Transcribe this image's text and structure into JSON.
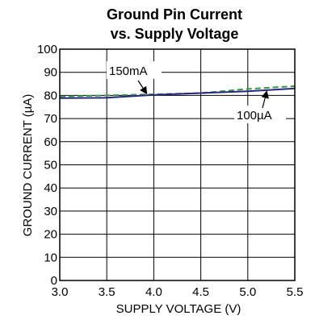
{
  "chart_data": {
    "type": "line",
    "title": "Ground Pin Current",
    "subtitle": "vs. Supply Voltage",
    "xlabel": "SUPPLY VOLTAGE (V)",
    "ylabel": "GROUND CURRENT (µA)",
    "xlim": [
      3.0,
      5.5
    ],
    "ylim": [
      0,
      100
    ],
    "xticks": [
      "3.0",
      "3.5",
      "4.0",
      "4.5",
      "5.0",
      "5.5"
    ],
    "yticks": [
      "0",
      "10",
      "20",
      "30",
      "40",
      "50",
      "60",
      "70",
      "80",
      "90",
      "100"
    ],
    "grid": true,
    "series": [
      {
        "name": "150mA",
        "color": "#2e9d3a",
        "dash": true,
        "x": [
          3.0,
          3.5,
          4.0,
          4.5,
          5.0,
          5.5
        ],
        "y": [
          79.5,
          80.0,
          80.5,
          81.0,
          82.8,
          84.0
        ]
      },
      {
        "name": "100µA",
        "color": "#2a2688",
        "dash": false,
        "x": [
          3.0,
          3.5,
          4.0,
          4.5,
          5.0,
          5.5
        ],
        "y": [
          78.8,
          79.0,
          80.2,
          81.0,
          81.8,
          83.0
        ]
      }
    ]
  }
}
